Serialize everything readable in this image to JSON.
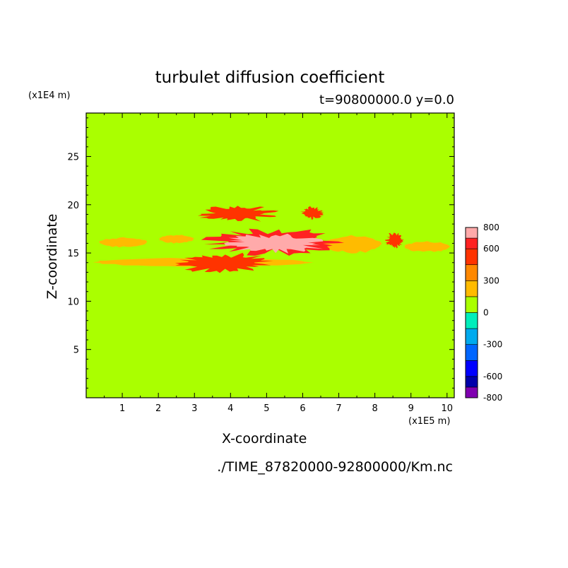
{
  "chart_data": {
    "type": "heatmap",
    "title": "turbulet diffusion coefficient",
    "subtitle": "t=90800000.0 y=0.0",
    "xlabel": "X-coordinate",
    "ylabel": "Z-coordinate",
    "x_unit": "(x1E5 m)",
    "y_unit": "(x1E4 m)",
    "xlim": [
      0,
      10.2
    ],
    "ylim": [
      0,
      29.5
    ],
    "x_ticks": [
      1,
      2,
      3,
      4,
      5,
      6,
      7,
      8,
      9,
      10
    ],
    "y_ticks": [
      5,
      10,
      15,
      20,
      25
    ],
    "background_value": 0,
    "colorbar": {
      "range": [
        -800,
        800
      ],
      "labels": [
        800,
        600,
        300,
        0,
        -300,
        -600,
        -800
      ],
      "bins": [
        {
          "from": -800,
          "to": -700,
          "color": "#8000b0"
        },
        {
          "from": -700,
          "to": -600,
          "color": "#0000aa"
        },
        {
          "from": -600,
          "to": -450,
          "color": "#0000ff"
        },
        {
          "from": -450,
          "to": -300,
          "color": "#0066ff"
        },
        {
          "from": -300,
          "to": -150,
          "color": "#00aaee"
        },
        {
          "from": -150,
          "to": 0,
          "color": "#00eebb"
        },
        {
          "from": 0,
          "to": 150,
          "color": "#aaff00"
        },
        {
          "from": 150,
          "to": 300,
          "color": "#ffbb00"
        },
        {
          "from": 300,
          "to": 450,
          "color": "#ff8800"
        },
        {
          "from": 450,
          "to": 600,
          "color": "#ff3300"
        },
        {
          "from": 600,
          "to": 700,
          "color": "#ff2222"
        },
        {
          "from": 700,
          "to": 800,
          "color": "#ffaaaa"
        }
      ]
    },
    "regions": [
      {
        "shape": "band",
        "x": [
          0.35,
          1.7
        ],
        "z": [
          15.6,
          16.6
        ],
        "value": 200
      },
      {
        "shape": "band",
        "x": [
          2.0,
          3.0
        ],
        "z": [
          16.0,
          16.9
        ],
        "value": 200
      },
      {
        "shape": "band",
        "x": [
          0.1,
          6.3
        ],
        "z": [
          13.6,
          14.5
        ],
        "value": 200
      },
      {
        "shape": "band",
        "x": [
          8.8,
          10.1
        ],
        "z": [
          15.1,
          16.2
        ],
        "value": 200
      },
      {
        "shape": "band",
        "x": [
          6.5,
          8.2
        ],
        "z": [
          15.0,
          16.8
        ],
        "value": 200
      },
      {
        "shape": "blob",
        "x": [
          2.5,
          5.2
        ],
        "z": [
          12.9,
          15.0
        ],
        "value": 500
      },
      {
        "shape": "blob",
        "x": [
          3.1,
          5.3
        ],
        "z": [
          18.2,
          19.9
        ],
        "value": 500
      },
      {
        "shape": "blob",
        "x": [
          5.9,
          6.6
        ],
        "z": [
          18.5,
          19.8
        ],
        "value": 500
      },
      {
        "shape": "blob",
        "x": [
          3.2,
          7.1
        ],
        "z": [
          14.8,
          17.6
        ],
        "value": 650
      },
      {
        "shape": "blob",
        "x": [
          3.8,
          6.7
        ],
        "z": [
          15.0,
          17.0
        ],
        "value": 750
      },
      {
        "shape": "blob",
        "x": [
          8.3,
          8.8
        ],
        "z": [
          15.5,
          17.2
        ],
        "value": 500
      }
    ]
  },
  "source_file": "./TIME_87820000-92800000/Km.nc"
}
